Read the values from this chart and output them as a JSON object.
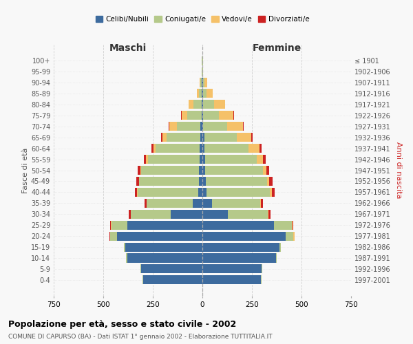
{
  "age_groups": [
    "0-4",
    "5-9",
    "10-14",
    "15-19",
    "20-24",
    "25-29",
    "30-34",
    "35-39",
    "40-44",
    "45-49",
    "50-54",
    "55-59",
    "60-64",
    "65-69",
    "70-74",
    "75-79",
    "80-84",
    "85-89",
    "90-94",
    "95-99",
    "100+"
  ],
  "birth_years": [
    "1997-2001",
    "1992-1996",
    "1987-1991",
    "1982-1986",
    "1977-1981",
    "1972-1976",
    "1967-1971",
    "1962-1966",
    "1957-1961",
    "1952-1956",
    "1947-1951",
    "1942-1946",
    "1937-1941",
    "1932-1936",
    "1927-1931",
    "1922-1926",
    "1917-1921",
    "1912-1916",
    "1907-1911",
    "1902-1906",
    "≤ 1901"
  ],
  "males": {
    "celibi": [
      300,
      310,
      380,
      390,
      430,
      380,
      160,
      50,
      22,
      18,
      18,
      15,
      15,
      10,
      10,
      5,
      5,
      2,
      2,
      0,
      0
    ],
    "coniugati": [
      2,
      2,
      5,
      5,
      35,
      80,
      200,
      230,
      305,
      300,
      290,
      260,
      220,
      170,
      120,
      70,
      40,
      15,
      8,
      3,
      2
    ],
    "vedovi": [
      0,
      0,
      0,
      0,
      2,
      2,
      2,
      2,
      2,
      3,
      5,
      8,
      12,
      20,
      35,
      30,
      25,
      10,
      5,
      0,
      0
    ],
    "divorziati": [
      0,
      0,
      0,
      0,
      2,
      5,
      8,
      10,
      12,
      12,
      12,
      12,
      10,
      8,
      5,
      2,
      0,
      0,
      0,
      0,
      0
    ]
  },
  "females": {
    "nubili": [
      295,
      300,
      370,
      390,
      420,
      360,
      130,
      50,
      22,
      18,
      15,
      15,
      12,
      10,
      5,
      5,
      3,
      2,
      2,
      0,
      0
    ],
    "coniugate": [
      2,
      2,
      5,
      5,
      40,
      90,
      200,
      240,
      320,
      310,
      290,
      260,
      220,
      165,
      120,
      80,
      55,
      20,
      10,
      3,
      2
    ],
    "vedove": [
      0,
      0,
      0,
      0,
      5,
      5,
      5,
      5,
      8,
      10,
      18,
      30,
      55,
      70,
      80,
      70,
      55,
      30,
      12,
      2,
      0
    ],
    "divorziate": [
      0,
      0,
      0,
      0,
      2,
      5,
      10,
      12,
      15,
      15,
      15,
      15,
      12,
      8,
      5,
      5,
      2,
      0,
      0,
      0,
      0
    ]
  },
  "colors": {
    "celibi": "#3d6b9e",
    "coniugati": "#b5c98a",
    "vedovi": "#f5c169",
    "divorziati": "#cc2222"
  },
  "xlim": 750,
  "title": "Popolazione per età, sesso e stato civile - 2002",
  "subtitle": "COMUNE DI CAPURSO (BA) - Dati ISTAT 1° gennaio 2002 - Elaborazione TUTTITALIA.IT",
  "ylabel_left": "Fasce di età",
  "ylabel_right": "Anni di nascita",
  "xlabel_left": "Maschi",
  "xlabel_right": "Femmine",
  "legend_labels": [
    "Celibi/Nubili",
    "Coniugati/e",
    "Vedovi/e",
    "Divorziati/e"
  ],
  "background_color": "#f8f8f8",
  "grid_color": "#cccccc"
}
